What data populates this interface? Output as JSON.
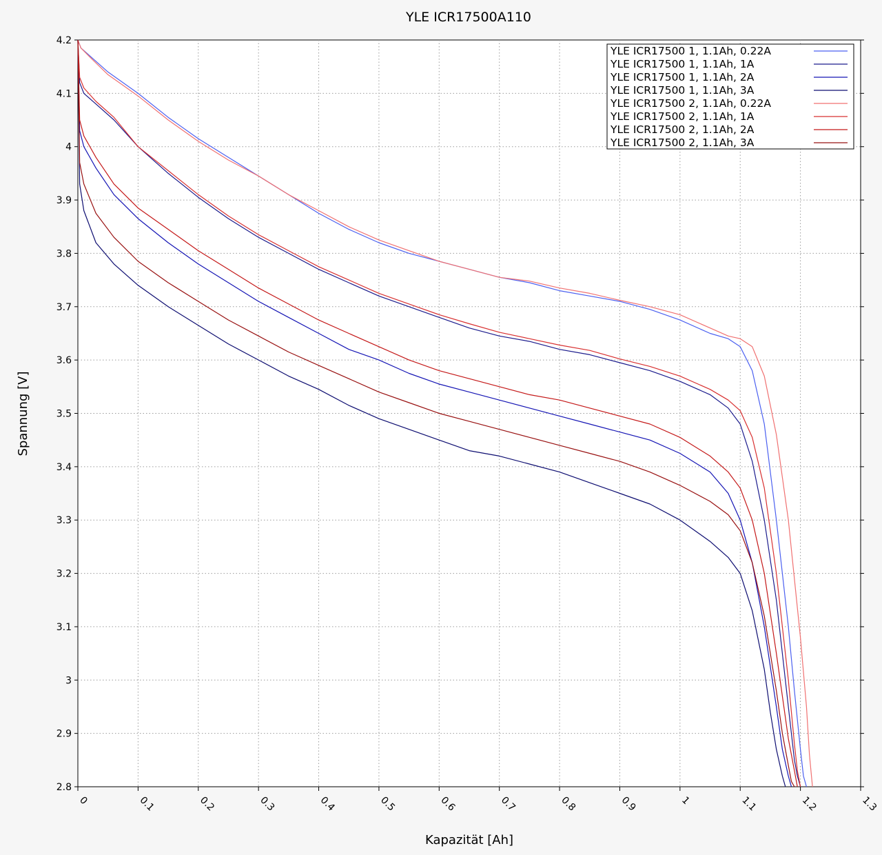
{
  "chart_data": {
    "type": "line",
    "title": "YLE  ICR17500A110",
    "xlabel": "Kapazität [Ah]",
    "ylabel": "Spannung [V]",
    "xlim": [
      0,
      1.3
    ],
    "ylim": [
      2.8,
      4.2
    ],
    "x_ticks": [
      "0",
      "0.1",
      "0.2",
      "0.3",
      "0.4",
      "0.5",
      "0.6",
      "0.7",
      "0.8",
      "0.9",
      "1",
      "1.1",
      "1.2",
      "1.3"
    ],
    "y_ticks": [
      "4.2",
      "4.1",
      "4",
      "3.9",
      "3.8",
      "3.7",
      "3.6",
      "3.5",
      "3.4",
      "3.3",
      "3.2",
      "3.1",
      "3",
      "2.9",
      "2.8"
    ],
    "grid": true,
    "legend_position": "top-right",
    "series": [
      {
        "name": "YLE ICR17500 1, 1.1Ah, 0.22A",
        "color": "#4a5ff0",
        "x": [
          0,
          0.005,
          0.02,
          0.05,
          0.1,
          0.15,
          0.2,
          0.25,
          0.3,
          0.35,
          0.4,
          0.45,
          0.5,
          0.55,
          0.6,
          0.65,
          0.7,
          0.75,
          0.8,
          0.85,
          0.9,
          0.95,
          1.0,
          1.05,
          1.08,
          1.1,
          1.12,
          1.14,
          1.16,
          1.18,
          1.19,
          1.2,
          1.205,
          1.21
        ],
        "y": [
          4.2,
          4.185,
          4.17,
          4.14,
          4.1,
          4.055,
          4.015,
          3.98,
          3.945,
          3.91,
          3.875,
          3.845,
          3.82,
          3.8,
          3.785,
          3.77,
          3.755,
          3.745,
          3.73,
          3.72,
          3.71,
          3.695,
          3.675,
          3.65,
          3.64,
          3.625,
          3.58,
          3.48,
          3.3,
          3.1,
          2.98,
          2.87,
          2.82,
          2.8
        ]
      },
      {
        "name": "YLE ICR17500 1, 1.1Ah, 1A",
        "color": "#1a1a8c",
        "x": [
          0,
          0.003,
          0.01,
          0.03,
          0.06,
          0.1,
          0.15,
          0.2,
          0.25,
          0.3,
          0.35,
          0.4,
          0.45,
          0.5,
          0.55,
          0.6,
          0.65,
          0.7,
          0.75,
          0.8,
          0.85,
          0.9,
          0.95,
          1.0,
          1.05,
          1.08,
          1.1,
          1.12,
          1.14,
          1.16,
          1.18,
          1.19,
          1.195,
          1.2
        ],
        "y": [
          4.2,
          4.12,
          4.1,
          4.08,
          4.05,
          4.0,
          3.95,
          3.905,
          3.865,
          3.83,
          3.8,
          3.77,
          3.745,
          3.72,
          3.7,
          3.68,
          3.66,
          3.645,
          3.635,
          3.62,
          3.61,
          3.595,
          3.58,
          3.56,
          3.535,
          3.51,
          3.48,
          3.41,
          3.3,
          3.15,
          2.95,
          2.85,
          2.82,
          2.8
        ]
      },
      {
        "name": "YLE ICR17500 1, 1.1Ah, 2A",
        "color": "#1414b4",
        "x": [
          0,
          0.003,
          0.01,
          0.03,
          0.06,
          0.1,
          0.15,
          0.2,
          0.25,
          0.3,
          0.35,
          0.4,
          0.45,
          0.5,
          0.55,
          0.6,
          0.65,
          0.7,
          0.75,
          0.8,
          0.85,
          0.9,
          0.95,
          1.0,
          1.05,
          1.08,
          1.1,
          1.12,
          1.14,
          1.16,
          1.17,
          1.18,
          1.185
        ],
        "y": [
          4.2,
          4.03,
          4.0,
          3.96,
          3.91,
          3.865,
          3.82,
          3.78,
          3.745,
          3.71,
          3.68,
          3.65,
          3.62,
          3.6,
          3.575,
          3.555,
          3.54,
          3.525,
          3.51,
          3.495,
          3.48,
          3.465,
          3.45,
          3.425,
          3.39,
          3.35,
          3.3,
          3.22,
          3.1,
          2.95,
          2.87,
          2.82,
          2.8
        ]
      },
      {
        "name": "YLE ICR17500 1, 1.1Ah, 3A",
        "color": "#0c0c70",
        "x": [
          0,
          0.003,
          0.01,
          0.03,
          0.06,
          0.1,
          0.15,
          0.2,
          0.25,
          0.3,
          0.35,
          0.4,
          0.45,
          0.5,
          0.55,
          0.6,
          0.65,
          0.7,
          0.75,
          0.8,
          0.85,
          0.9,
          0.95,
          1.0,
          1.05,
          1.08,
          1.1,
          1.12,
          1.14,
          1.15,
          1.16,
          1.17,
          1.175
        ],
        "y": [
          4.2,
          3.93,
          3.88,
          3.82,
          3.78,
          3.74,
          3.7,
          3.665,
          3.63,
          3.6,
          3.57,
          3.545,
          3.515,
          3.49,
          3.47,
          3.45,
          3.43,
          3.42,
          3.405,
          3.39,
          3.37,
          3.35,
          3.33,
          3.3,
          3.26,
          3.23,
          3.2,
          3.13,
          3.02,
          2.94,
          2.87,
          2.82,
          2.8
        ]
      },
      {
        "name": "YLE ICR17500 2, 1.1Ah, 0.22A",
        "color": "#f07070",
        "x": [
          0,
          0.005,
          0.02,
          0.05,
          0.1,
          0.15,
          0.2,
          0.25,
          0.3,
          0.35,
          0.4,
          0.45,
          0.5,
          0.55,
          0.6,
          0.65,
          0.7,
          0.75,
          0.8,
          0.85,
          0.9,
          0.95,
          1.0,
          1.05,
          1.08,
          1.1,
          1.12,
          1.14,
          1.16,
          1.18,
          1.2,
          1.21,
          1.215,
          1.22
        ],
        "y": [
          4.2,
          4.185,
          4.168,
          4.135,
          4.095,
          4.05,
          4.01,
          3.975,
          3.945,
          3.91,
          3.88,
          3.85,
          3.825,
          3.805,
          3.785,
          3.77,
          3.755,
          3.748,
          3.735,
          3.725,
          3.712,
          3.7,
          3.685,
          3.66,
          3.645,
          3.64,
          3.625,
          3.57,
          3.46,
          3.3,
          3.08,
          2.95,
          2.86,
          2.8
        ]
      },
      {
        "name": "YLE ICR17500 2, 1.1Ah, 1A",
        "color": "#d83030",
        "x": [
          0,
          0.003,
          0.01,
          0.03,
          0.06,
          0.1,
          0.15,
          0.2,
          0.25,
          0.3,
          0.35,
          0.4,
          0.45,
          0.5,
          0.55,
          0.6,
          0.65,
          0.7,
          0.75,
          0.8,
          0.85,
          0.9,
          0.95,
          1.0,
          1.05,
          1.08,
          1.1,
          1.12,
          1.14,
          1.16,
          1.18,
          1.19,
          1.195,
          1.2
        ],
        "y": [
          4.2,
          4.13,
          4.11,
          4.085,
          4.055,
          4.0,
          3.955,
          3.91,
          3.87,
          3.835,
          3.805,
          3.775,
          3.75,
          3.725,
          3.705,
          3.685,
          3.668,
          3.652,
          3.64,
          3.628,
          3.618,
          3.602,
          3.588,
          3.57,
          3.545,
          3.525,
          3.505,
          3.455,
          3.36,
          3.2,
          3.0,
          2.88,
          2.83,
          2.8
        ]
      },
      {
        "name": "YLE ICR17500 2, 1.1Ah, 2A",
        "color": "#c41818",
        "x": [
          0,
          0.003,
          0.01,
          0.03,
          0.06,
          0.1,
          0.15,
          0.2,
          0.25,
          0.3,
          0.35,
          0.4,
          0.45,
          0.5,
          0.55,
          0.6,
          0.65,
          0.7,
          0.75,
          0.8,
          0.85,
          0.9,
          0.95,
          1.0,
          1.05,
          1.08,
          1.1,
          1.12,
          1.14,
          1.16,
          1.17,
          1.18,
          1.19,
          1.195
        ],
        "y": [
          4.2,
          4.05,
          4.02,
          3.98,
          3.93,
          3.885,
          3.845,
          3.805,
          3.77,
          3.735,
          3.705,
          3.675,
          3.65,
          3.625,
          3.6,
          3.58,
          3.565,
          3.55,
          3.535,
          3.525,
          3.51,
          3.495,
          3.48,
          3.455,
          3.42,
          3.39,
          3.36,
          3.3,
          3.2,
          3.05,
          2.97,
          2.89,
          2.83,
          2.8
        ]
      },
      {
        "name": "YLE ICR17500 2, 1.1Ah, 3A",
        "color": "#981010",
        "x": [
          0,
          0.003,
          0.01,
          0.03,
          0.06,
          0.1,
          0.15,
          0.2,
          0.25,
          0.3,
          0.35,
          0.4,
          0.45,
          0.5,
          0.55,
          0.6,
          0.65,
          0.7,
          0.75,
          0.8,
          0.85,
          0.9,
          0.95,
          1.0,
          1.05,
          1.08,
          1.1,
          1.12,
          1.14,
          1.16,
          1.17,
          1.18,
          1.185,
          1.19
        ],
        "y": [
          4.2,
          3.97,
          3.93,
          3.875,
          3.83,
          3.785,
          3.745,
          3.71,
          3.675,
          3.645,
          3.615,
          3.59,
          3.565,
          3.54,
          3.52,
          3.5,
          3.485,
          3.47,
          3.455,
          3.44,
          3.425,
          3.41,
          3.39,
          3.365,
          3.335,
          3.31,
          3.28,
          3.22,
          3.12,
          2.98,
          2.9,
          2.84,
          2.81,
          2.8
        ]
      }
    ]
  }
}
